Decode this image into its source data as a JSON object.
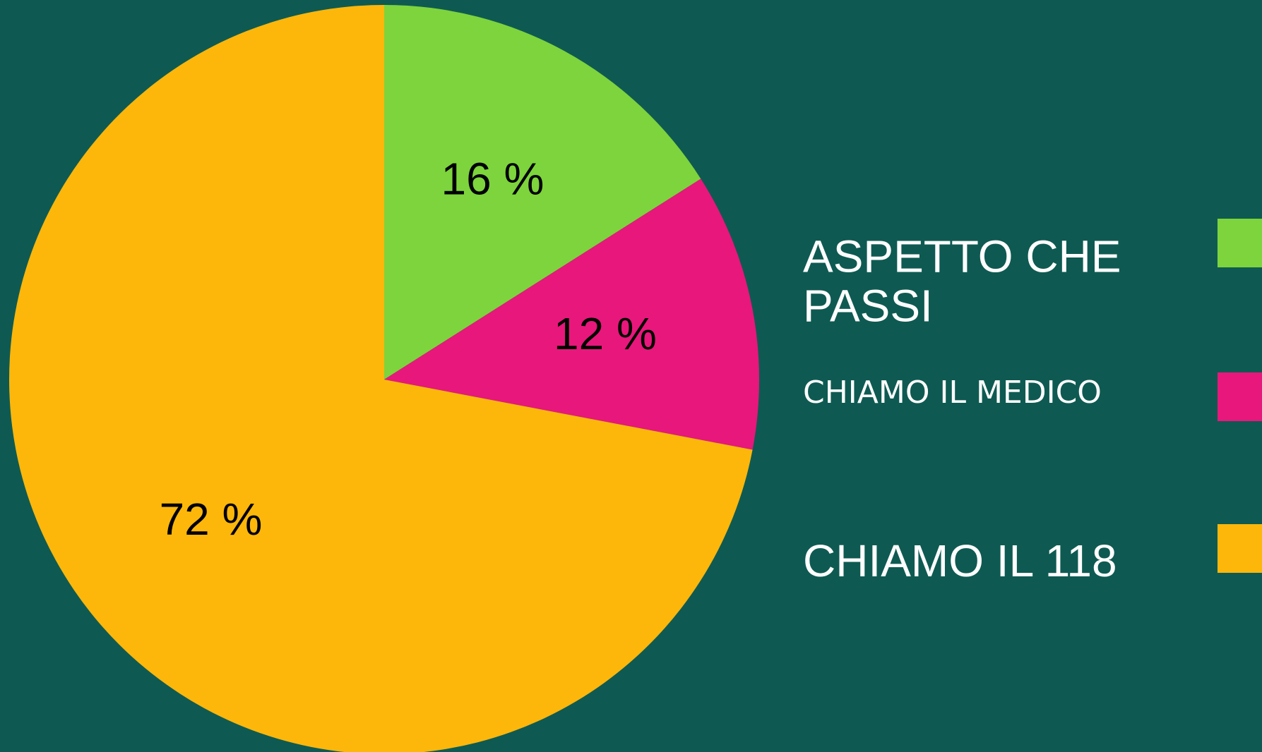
{
  "chart_data": {
    "type": "pie",
    "categories": [
      "ASPETTO CHE PASSI",
      "CHIAMO IL MEDICO",
      "CHIAMO IL 118"
    ],
    "values": [
      16,
      12,
      72
    ],
    "value_labels": [
      "16 %",
      "12 %",
      "72 %"
    ],
    "colors": [
      "#7dd43c",
      "#e8177b",
      "#fdb70b"
    ]
  }
}
